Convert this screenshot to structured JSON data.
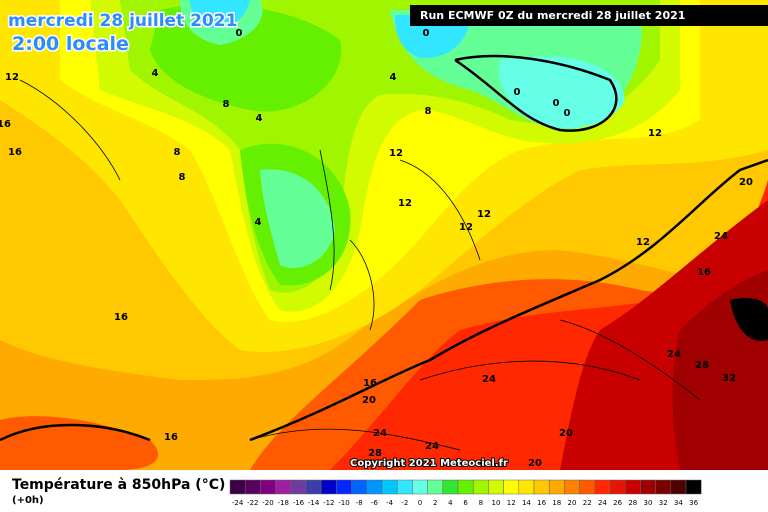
{
  "header": {
    "date": "mercredi 28 juillet 2021",
    "time": "2:00 locale",
    "run": "Run ECMWF 0Z du mercredi 28 juillet 2021"
  },
  "copyright": "Copyright 2021 Meteociel.fr",
  "legend": {
    "title": "Température à 850hPa (°C)",
    "subtitle": "(+0h)",
    "ticks": [
      -24,
      -22,
      -20,
      -18,
      -16,
      -14,
      -12,
      -10,
      -8,
      -6,
      -4,
      -2,
      0,
      2,
      4,
      6,
      8,
      10,
      12,
      14,
      16,
      18,
      20,
      22,
      24,
      26,
      28,
      30,
      32,
      34,
      36
    ],
    "colors": [
      "#3c0046",
      "#5a005f",
      "#800080",
      "#a01ea0",
      "#6e3ca0",
      "#3c3caa",
      "#0000c8",
      "#0028ff",
      "#0064ff",
      "#0096ff",
      "#00c8ff",
      "#32e6ff",
      "#64ffe6",
      "#64ff96",
      "#32e632",
      "#64f000",
      "#a0f500",
      "#d2fa00",
      "#ffff00",
      "#ffe600",
      "#ffc800",
      "#ffaa00",
      "#ff8200",
      "#ff5a00",
      "#ff2800",
      "#e61400",
      "#c80000",
      "#a00000",
      "#780000",
      "#500000",
      "#000000"
    ]
  },
  "contour_labels": [
    0,
    0,
    4,
    4,
    0,
    0,
    0,
    12,
    8,
    8,
    4,
    16,
    16,
    8,
    8,
    12,
    12,
    20,
    4,
    12,
    12,
    12,
    24,
    12,
    16,
    16,
    16,
    20,
    24,
    24,
    28,
    32,
    16,
    24,
    24,
    28,
    20,
    20
  ]
}
